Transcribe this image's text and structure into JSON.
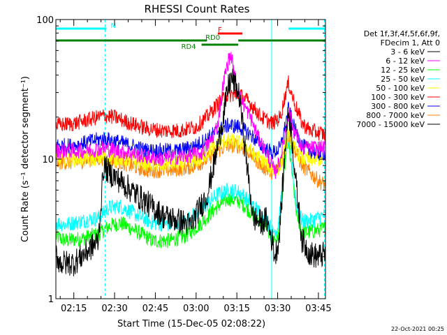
{
  "chart_data": {
    "type": "line",
    "title": "RHESSI Count Rates",
    "xlabel": "Start Time (15-Dec-05 02:08:22)",
    "ylabel": "Count Rate (s⁻¹ detector segment⁻¹)",
    "yscale": "log",
    "ylim": [
      1,
      100
    ],
    "xlim_minutes": [
      8.4,
      107.6
    ],
    "y_ticks": [
      {
        "value": 1,
        "label": "1"
      },
      {
        "value": 10,
        "label": "10"
      },
      {
        "value": 100,
        "label": "100"
      }
    ],
    "x_ticks": [
      {
        "minutes": 15,
        "label": "02:15"
      },
      {
        "minutes": 30,
        "label": "02:30"
      },
      {
        "minutes": 45,
        "label": "02:45"
      },
      {
        "minutes": 60,
        "label": "03:00"
      },
      {
        "minutes": 75,
        "label": "03:15"
      },
      {
        "minutes": 90,
        "label": "03:30"
      },
      {
        "minutes": 105,
        "label": "03:45"
      }
    ],
    "legend_header": [
      "Det 1f,3f,4f,5f,6f,9f,",
      "FDecim 1, Att 0"
    ],
    "legend_position": "right",
    "series": [
      {
        "name": "3 - 6 keV",
        "color": "#000000",
        "key": [
          [
            8.4,
            2.1
          ],
          [
            10,
            1.8
          ],
          [
            15,
            1.8
          ],
          [
            20,
            2.2
          ],
          [
            24,
            2.6
          ],
          [
            26,
            9
          ],
          [
            28,
            8
          ],
          [
            32,
            7
          ],
          [
            36,
            6
          ],
          [
            40,
            5.2
          ],
          [
            44,
            4.5
          ],
          [
            48,
            3.9
          ],
          [
            52,
            3.7
          ],
          [
            56,
            3.5
          ],
          [
            58,
            3.3
          ],
          [
            60,
            4
          ],
          [
            64,
            5.5
          ],
          [
            67,
            10
          ],
          [
            70,
            20
          ],
          [
            72,
            34
          ],
          [
            73,
            38
          ],
          [
            75,
            32
          ],
          [
            76,
            28
          ],
          [
            79,
            8
          ],
          [
            81,
            3.8
          ],
          [
            84,
            3.5
          ],
          [
            86,
            3.7
          ],
          [
            88,
            2.6
          ],
          [
            89,
            2
          ],
          [
            90.5,
            2.7
          ],
          [
            91.5,
            5
          ],
          [
            93,
            14
          ],
          [
            94,
            22
          ],
          [
            95,
            16
          ],
          [
            97,
            6
          ],
          [
            99,
            2.6
          ],
          [
            102,
            2.1
          ],
          [
            105,
            2
          ],
          [
            107.6,
            2.1
          ]
        ]
      },
      {
        "name": "6 - 12 keV",
        "color": "#ff00ff",
        "key": [
          [
            8.4,
            11.5
          ],
          [
            20,
            11.5
          ],
          [
            26,
            12
          ],
          [
            36,
            11
          ],
          [
            46,
            10
          ],
          [
            56,
            10.5
          ],
          [
            62,
            11
          ],
          [
            66,
            14
          ],
          [
            68,
            18
          ],
          [
            70,
            35
          ],
          [
            72,
            52
          ],
          [
            73,
            55
          ],
          [
            74,
            40
          ],
          [
            76,
            28
          ],
          [
            80,
            20
          ],
          [
            83,
            14
          ],
          [
            86,
            11
          ],
          [
            89,
            8
          ],
          [
            91,
            10
          ],
          [
            93,
            16
          ],
          [
            94,
            22
          ],
          [
            96,
            16
          ],
          [
            99,
            12
          ],
          [
            102,
            12
          ],
          [
            105,
            12
          ],
          [
            107.6,
            12
          ]
        ]
      },
      {
        "name": "12 - 25 keV",
        "color": "#00ff00",
        "key": [
          [
            8.4,
            2.8
          ],
          [
            12,
            2.6
          ],
          [
            18,
            2.7
          ],
          [
            24,
            2.9
          ],
          [
            28,
            3.3
          ],
          [
            32,
            3.5
          ],
          [
            36,
            3.2
          ],
          [
            40,
            2.9
          ],
          [
            44,
            2.6
          ],
          [
            50,
            2.6
          ],
          [
            56,
            2.8
          ],
          [
            62,
            3.5
          ],
          [
            68,
            4.6
          ],
          [
            72,
            5.2
          ],
          [
            76,
            5
          ],
          [
            80,
            4.2
          ],
          [
            84,
            3.5
          ],
          [
            86,
            3.3
          ],
          [
            88,
            2.7
          ],
          [
            90,
            2.7
          ],
          [
            91.5,
            5
          ],
          [
            93,
            11
          ],
          [
            94,
            13
          ],
          [
            95,
            9
          ],
          [
            97,
            4
          ],
          [
            99,
            3
          ],
          [
            102,
            3
          ],
          [
            105,
            3.1
          ],
          [
            107.6,
            3.2
          ]
        ]
      },
      {
        "name": "25 - 50 keV",
        "color": "#00ffff",
        "key": [
          [
            8.4,
            3.5
          ],
          [
            12,
            3.4
          ],
          [
            18,
            3.6
          ],
          [
            24,
            3.8
          ],
          [
            28,
            4.5
          ],
          [
            32,
            4.6
          ],
          [
            36,
            4.2
          ],
          [
            40,
            3.8
          ],
          [
            44,
            3.5
          ],
          [
            50,
            3.4
          ],
          [
            56,
            3.6
          ],
          [
            62,
            4.4
          ],
          [
            68,
            5.6
          ],
          [
            72,
            6
          ],
          [
            76,
            5.8
          ],
          [
            80,
            4.9
          ],
          [
            84,
            4
          ],
          [
            86,
            3.7
          ],
          [
            88,
            3
          ],
          [
            90,
            3.2
          ],
          [
            91.5,
            5.5
          ],
          [
            93,
            12
          ],
          [
            94,
            14
          ],
          [
            95,
            10
          ],
          [
            97,
            4.5
          ],
          [
            99,
            3.6
          ],
          [
            102,
            3.6
          ],
          [
            105,
            3.8
          ],
          [
            107.6,
            4
          ]
        ]
      },
      {
        "name": "50 - 100 keV",
        "color": "#ffff00",
        "key": [
          [
            8.4,
            10
          ],
          [
            20,
            10
          ],
          [
            26,
            10.3
          ],
          [
            36,
            9.8
          ],
          [
            46,
            9
          ],
          [
            56,
            9.4
          ],
          [
            62,
            10
          ],
          [
            66,
            12
          ],
          [
            70,
            13.5
          ],
          [
            74,
            13.5
          ],
          [
            78,
            12.5
          ],
          [
            82,
            10.5
          ],
          [
            86,
            9.3
          ],
          [
            89,
            8.2
          ],
          [
            91,
            9
          ],
          [
            93,
            12.5
          ],
          [
            94,
            15
          ],
          [
            96,
            12
          ],
          [
            99,
            10
          ],
          [
            102,
            10
          ],
          [
            105,
            10
          ],
          [
            107.6,
            10
          ]
        ]
      },
      {
        "name": "100 - 300 keV",
        "color": "#ff0000",
        "key": [
          [
            8.4,
            17.5
          ],
          [
            15,
            18
          ],
          [
            22,
            19.5
          ],
          [
            26,
            20.5
          ],
          [
            30,
            20
          ],
          [
            36,
            18
          ],
          [
            42,
            16.5
          ],
          [
            48,
            16
          ],
          [
            54,
            16
          ],
          [
            60,
            17
          ],
          [
            64,
            20
          ],
          [
            68,
            25
          ],
          [
            72,
            29
          ],
          [
            76,
            29
          ],
          [
            80,
            25
          ],
          [
            84,
            20
          ],
          [
            88,
            18
          ],
          [
            91,
            20
          ],
          [
            93,
            30
          ],
          [
            94,
            35
          ],
          [
            96,
            26
          ],
          [
            99,
            18
          ],
          [
            102,
            16
          ],
          [
            105,
            15.5
          ],
          [
            107.6,
            15
          ]
        ]
      },
      {
        "name": "300 - 800 keV",
        "color": "#0000ff",
        "key": [
          [
            8.4,
            12.5
          ],
          [
            15,
            12.5
          ],
          [
            22,
            13.5
          ],
          [
            26,
            14
          ],
          [
            30,
            13.5
          ],
          [
            36,
            12.5
          ],
          [
            42,
            11.5
          ],
          [
            48,
            11.5
          ],
          [
            54,
            11.5
          ],
          [
            60,
            12.5
          ],
          [
            64,
            14
          ],
          [
            68,
            16
          ],
          [
            72,
            17.5
          ],
          [
            76,
            17
          ],
          [
            80,
            15
          ],
          [
            84,
            12.5
          ],
          [
            88,
            11
          ],
          [
            91,
            12
          ],
          [
            93,
            18
          ],
          [
            94,
            23
          ],
          [
            96,
            17
          ],
          [
            99,
            12.5
          ],
          [
            102,
            11.5
          ],
          [
            105,
            11
          ],
          [
            107.6,
            11
          ]
        ]
      },
      {
        "name": "800 - 7000 keV",
        "color": "#ff8000",
        "key": [
          [
            8.4,
            9.5
          ],
          [
            15,
            9.5
          ],
          [
            22,
            10
          ],
          [
            26,
            10.2
          ],
          [
            30,
            9.8
          ],
          [
            36,
            9
          ],
          [
            42,
            8.3
          ],
          [
            48,
            8.3
          ],
          [
            54,
            8.5
          ],
          [
            60,
            9
          ],
          [
            64,
            10
          ],
          [
            68,
            11.5
          ],
          [
            72,
            12.5
          ],
          [
            76,
            12.5
          ],
          [
            80,
            11
          ],
          [
            84,
            9
          ],
          [
            88,
            8
          ],
          [
            91,
            9
          ],
          [
            93,
            12.5
          ],
          [
            94,
            15
          ],
          [
            96,
            12
          ],
          [
            99,
            9
          ],
          [
            102,
            8
          ],
          [
            105,
            7
          ],
          [
            107.6,
            6.5
          ]
        ]
      },
      {
        "name": "7000 - 15000 keV",
        "color": "#000000",
        "key": []
      }
    ],
    "attenuator_bars": [
      {
        "label": "N",
        "color": "#00ffff",
        "ranges_minutes": [
          [
            8.4,
            27
          ],
          [
            94,
            107.6
          ]
        ]
      },
      {
        "label": "F",
        "color": "#ff0000",
        "ranges_minutes": [
          [
            68,
            77
          ]
        ]
      },
      {
        "label": "RD0",
        "color": "#008000",
        "ranges_minutes": [
          [
            8.4,
            64
          ],
          [
            75.5,
            107.6
          ]
        ]
      },
      {
        "label": "RD4",
        "color": "#008000",
        "ranges_minutes": [
          [
            62,
            75.5
          ]
        ]
      }
    ],
    "vertical_markers": [
      {
        "minutes": 8.4,
        "style": "solid",
        "color": "#00ffff"
      },
      {
        "minutes": 26.5,
        "style": "dashed",
        "color": "#00ffff"
      },
      {
        "minutes": 87.8,
        "style": "solid",
        "color": "#00ffff"
      },
      {
        "minutes": 107.2,
        "style": "dashed",
        "color": "#00ffff"
      }
    ]
  },
  "footer_date": "22-Oct-2021 00:25"
}
